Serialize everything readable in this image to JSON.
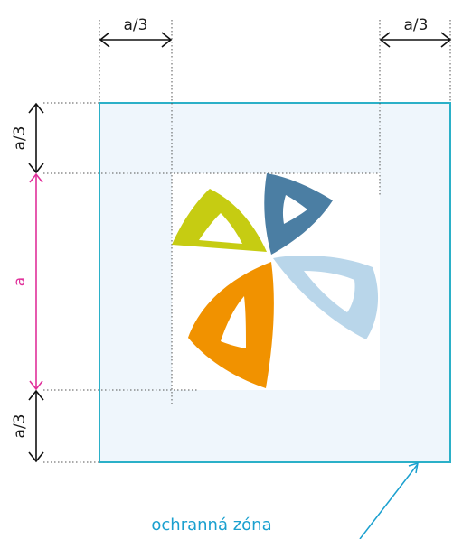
{
  "labels": {
    "top_left": "a/3",
    "top_right": "a/3",
    "left_top": "a/3",
    "left_middle": "a",
    "left_bottom": "a/3",
    "zone": "ochranná zóna"
  },
  "colors": {
    "zone_fill": "#eff6fc",
    "zone_border": "#2bb0c8",
    "petal_yellow": "#c6cc12",
    "petal_blue": "#4b7ea3",
    "petal_lightblue": "#b9d6ea",
    "petal_orange": "#f19200",
    "measure_a": "#e0309a",
    "zone_text": "#1aa0cf"
  }
}
